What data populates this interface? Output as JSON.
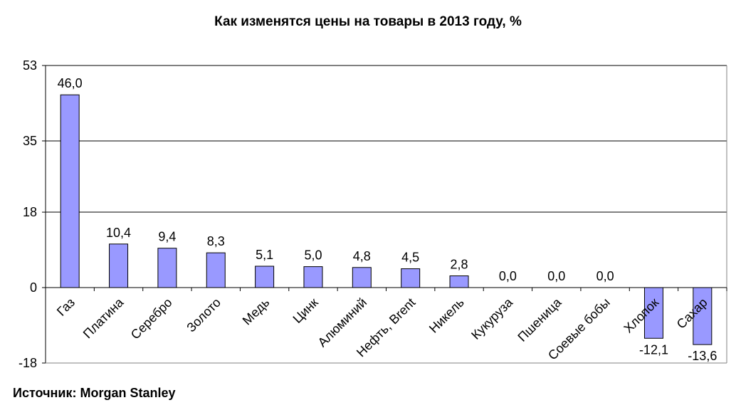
{
  "title": "Как изменятся цены на товары в 2013 году, %",
  "source": "Источник: Morgan Stanley",
  "colors": {
    "bar_fill": "#9999ff",
    "bar_stroke": "#000000",
    "grid": "#000000"
  },
  "chart_data": {
    "type": "bar",
    "title": "Как изменятся цены на товары в 2013 году, %",
    "xlabel": "",
    "ylabel": "",
    "categories": [
      "Газ",
      "Платина",
      "Серебро",
      "Золото",
      "Медь",
      "Цинк",
      "Алюминий",
      "Нефть, Brent",
      "Никель",
      "Кукуруза",
      "Пшеница",
      "Соевые бобы",
      "Хлопок",
      "Сахар"
    ],
    "values": [
      46.0,
      10.4,
      9.4,
      8.3,
      5.1,
      5.0,
      4.8,
      4.5,
      2.8,
      0.0,
      0.0,
      0.0,
      -12.1,
      -13.6
    ],
    "data_labels": [
      "46,0",
      "10,4",
      "9,4",
      "8,3",
      "5,1",
      "5,0",
      "4,8",
      "4,5",
      "2,8",
      "0,0",
      "0,0",
      "0,0",
      "-12,1",
      "-13,6"
    ],
    "yticks": [
      -18,
      0,
      18,
      35,
      53
    ],
    "ylim": [
      -18,
      53
    ],
    "grid": true,
    "legend": "none"
  }
}
